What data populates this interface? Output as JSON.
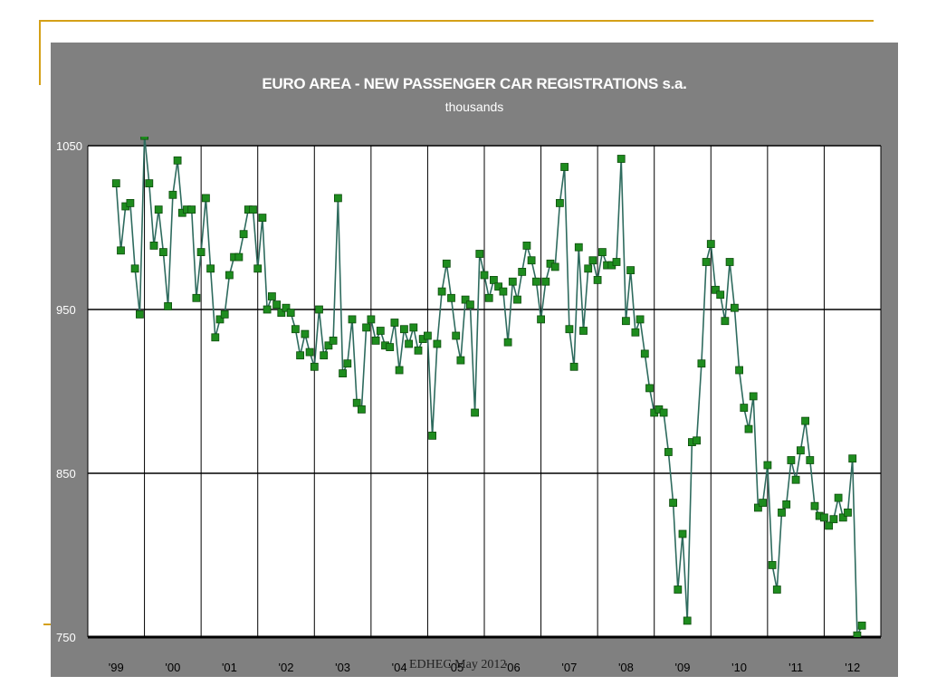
{
  "footer": "EDHEC May 2012",
  "chart_data": {
    "type": "line",
    "title": "EURO AREA - NEW PASSENGER CAR REGISTRATIONS s.a.",
    "subtitle": "thousands",
    "ylim": [
      750,
      1050
    ],
    "yticks": [
      750,
      850,
      950,
      1050
    ],
    "xlim": [
      1998.5,
      2012.5
    ],
    "xtick_labels": [
      "'99",
      "'00",
      "'01",
      "'02",
      "'03",
      "'04",
      "'05",
      "'06",
      "'07",
      "'08",
      "'09",
      "'10",
      "'11",
      "'12"
    ],
    "grid": true,
    "series": [
      {
        "name": "New passenger car registrations",
        "color": "#2e6b5e",
        "marker_color": "#1e8c1e",
        "start": 1999.0,
        "step_months": 1,
        "values": [
          1027,
          986,
          1013,
          1015,
          975,
          947,
          1056,
          1027,
          989,
          1011,
          985,
          952,
          1020,
          1041,
          1009,
          1011,
          1011,
          957,
          985,
          1018,
          975,
          933,
          944,
          947,
          971,
          982,
          982,
          996,
          1011,
          1011,
          975,
          1006,
          950,
          958,
          953,
          948,
          951,
          948,
          938,
          922,
          935,
          924,
          915,
          950,
          922,
          928,
          931,
          1018,
          911,
          917,
          944,
          893,
          889,
          939,
          944,
          931,
          937,
          928,
          927,
          942,
          913,
          938,
          929,
          939,
          925,
          932,
          934,
          873,
          929,
          961,
          978,
          957,
          934,
          919,
          956,
          953,
          887,
          984,
          971,
          957,
          968,
          964,
          961,
          930,
          967,
          956,
          973,
          989,
          980,
          967,
          944,
          967,
          978,
          976,
          1015,
          1037,
          938,
          915,
          988,
          937,
          975,
          980,
          968,
          985,
          977,
          977,
          979,
          1042,
          943,
          974,
          936,
          944,
          923,
          902,
          887,
          889,
          887,
          863,
          832,
          779,
          813,
          760,
          869,
          870,
          917,
          979,
          990,
          962,
          959,
          943,
          979,
          951,
          913,
          890,
          877,
          897,
          829,
          832,
          855,
          794,
          779,
          826,
          831,
          858,
          846,
          864,
          882,
          858,
          830,
          824,
          823,
          818,
          822,
          835,
          823,
          826,
          859,
          751,
          757
        ]
      }
    ]
  }
}
